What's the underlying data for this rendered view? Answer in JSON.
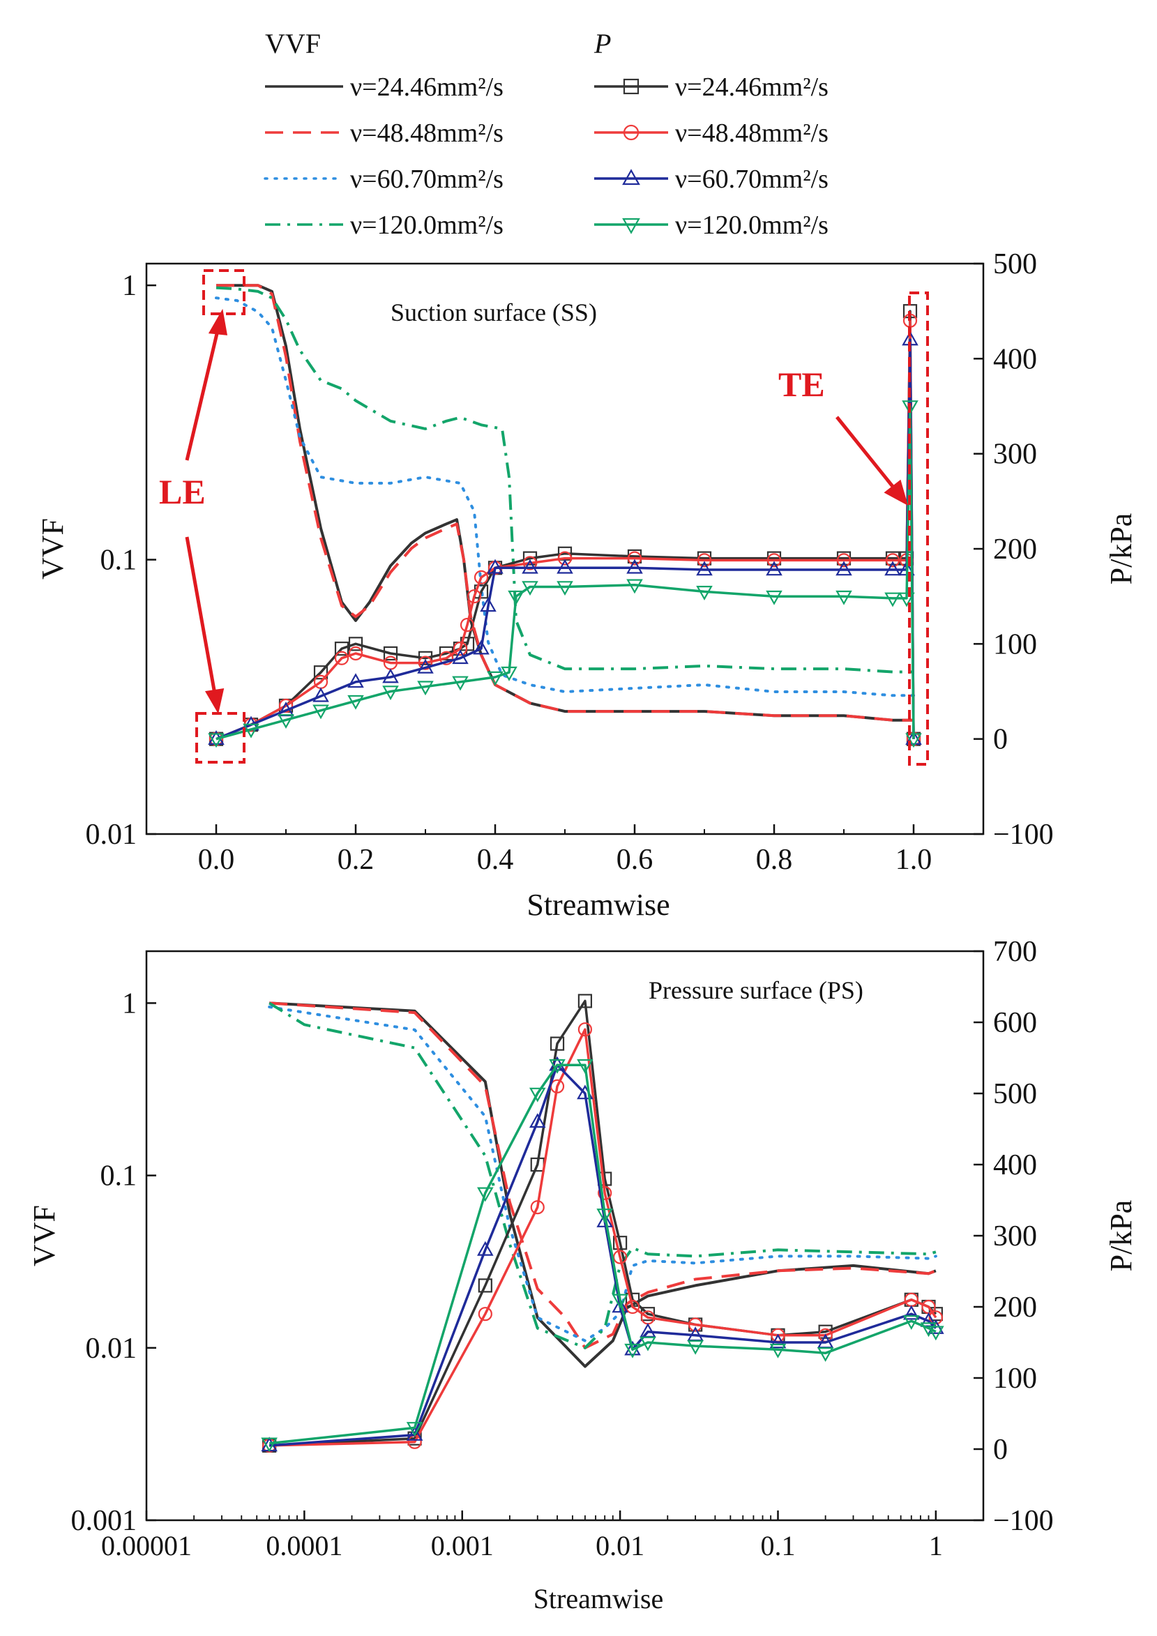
{
  "legend": {
    "vvf_header": "VVF",
    "p_header": "P",
    "items": [
      {
        "label": "ν=24.46mm²/s",
        "color": "#333333",
        "vvf_dash": "",
        "p_marker": "square"
      },
      {
        "label": "ν=48.48mm²/s",
        "color": "#ee3b3b",
        "vvf_dash": "26,14",
        "p_marker": "circle"
      },
      {
        "label": "ν=60.70mm²/s",
        "color": "#2e8ee0",
        "vvf_dash": "3,11",
        "p_marker": "triangle-up"
      },
      {
        "label": "ν=120.0mm²/s",
        "color": "#13a56a",
        "vvf_dash": "22,10,4,10",
        "p_marker": "triangle-down"
      }
    ],
    "p_colors": [
      "#333333",
      "#ee3b3b",
      "#1f2b9a",
      "#13a56a"
    ]
  },
  "chart_data": [
    {
      "type": "line",
      "name": "suction",
      "title": "Suction surface (SS)",
      "xlabel": "Streamwise",
      "ylabel_left": "VVF",
      "ylabel_right": "P/kPa",
      "xscale": "linear",
      "xlim": [
        -0.1,
        1.1
      ],
      "xticks": [
        0.0,
        0.2,
        0.4,
        0.6,
        0.8,
        1.0
      ],
      "xtick_labels": [
        "0.0",
        "0.2",
        "0.4",
        "0.6",
        "0.8",
        "1.0"
      ],
      "y_left_scale": "log",
      "y_left_lim": [
        0.01,
        1.2
      ],
      "y_left_ticks": [
        0.01,
        0.1,
        1
      ],
      "y_left_tick_labels": [
        "0.01",
        "0.1",
        "1"
      ],
      "y_right_lim": [
        -100,
        500
      ],
      "y_right_ticks": [
        -100,
        0,
        100,
        200,
        300,
        400,
        500
      ],
      "y_right_tick_labels": [
        "−100",
        "0",
        "100",
        "200",
        "300",
        "400",
        "500"
      ],
      "vvf_series": [
        {
          "name": "ν=24.46mm²/s",
          "x": [
            0,
            0.03,
            0.06,
            0.08,
            0.1,
            0.12,
            0.15,
            0.18,
            0.2,
            0.22,
            0.25,
            0.28,
            0.3,
            0.33,
            0.345,
            0.355,
            0.365,
            0.38,
            0.4,
            0.45,
            0.5,
            0.6,
            0.7,
            0.8,
            0.9,
            0.97,
            0.99,
            0.995,
            1.0
          ],
          "y": [
            1.0,
            1.0,
            1.0,
            0.95,
            0.6,
            0.3,
            0.13,
            0.07,
            0.06,
            0.07,
            0.095,
            0.115,
            0.125,
            0.135,
            0.14,
            0.1,
            0.06,
            0.045,
            0.035,
            0.03,
            0.028,
            0.028,
            0.028,
            0.027,
            0.027,
            0.026,
            0.026,
            0.026,
            0.026
          ]
        },
        {
          "name": "ν=48.48mm²/s",
          "x": [
            0,
            0.03,
            0.06,
            0.08,
            0.1,
            0.12,
            0.15,
            0.18,
            0.2,
            0.22,
            0.25,
            0.28,
            0.3,
            0.33,
            0.345,
            0.355,
            0.365,
            0.38,
            0.4,
            0.45,
            0.5,
            0.6,
            0.7,
            0.8,
            0.9,
            0.97,
            0.99,
            0.995,
            1.0
          ],
          "y": [
            1.0,
            1.0,
            1.0,
            0.93,
            0.55,
            0.27,
            0.12,
            0.068,
            0.062,
            0.068,
            0.09,
            0.11,
            0.12,
            0.13,
            0.135,
            0.1,
            0.062,
            0.045,
            0.035,
            0.03,
            0.028,
            0.028,
            0.028,
            0.027,
            0.027,
            0.026,
            0.026,
            0.026,
            0.026
          ]
        },
        {
          "name": "ν=60.70mm²/s",
          "x": [
            0,
            0.03,
            0.06,
            0.08,
            0.1,
            0.12,
            0.15,
            0.2,
            0.25,
            0.3,
            0.35,
            0.37,
            0.38,
            0.39,
            0.41,
            0.45,
            0.5,
            0.6,
            0.7,
            0.8,
            0.9,
            0.97,
            0.99,
            0.995,
            1.0
          ],
          "y": [
            0.9,
            0.88,
            0.8,
            0.7,
            0.45,
            0.28,
            0.2,
            0.19,
            0.19,
            0.2,
            0.19,
            0.15,
            0.08,
            0.05,
            0.038,
            0.035,
            0.033,
            0.034,
            0.035,
            0.033,
            0.033,
            0.032,
            0.032,
            0.032,
            0.032
          ]
        },
        {
          "name": "ν=120.0mm²/s",
          "x": [
            0,
            0.03,
            0.06,
            0.08,
            0.1,
            0.12,
            0.15,
            0.18,
            0.2,
            0.25,
            0.3,
            0.33,
            0.35,
            0.38,
            0.41,
            0.42,
            0.43,
            0.45,
            0.5,
            0.6,
            0.7,
            0.8,
            0.9,
            0.97,
            0.99,
            0.995,
            1.0
          ],
          "y": [
            0.98,
            0.97,
            0.95,
            0.9,
            0.75,
            0.58,
            0.45,
            0.42,
            0.38,
            0.32,
            0.3,
            0.32,
            0.33,
            0.31,
            0.3,
            0.2,
            0.06,
            0.045,
            0.04,
            0.04,
            0.041,
            0.04,
            0.04,
            0.039,
            0.039,
            0.039,
            0.039
          ]
        }
      ],
      "p_series": [
        {
          "name": "ν=24.46mm²/s",
          "x": [
            0,
            0.05,
            0.1,
            0.15,
            0.18,
            0.2,
            0.25,
            0.3,
            0.33,
            0.35,
            0.36,
            0.38,
            0.4,
            0.45,
            0.5,
            0.6,
            0.7,
            0.8,
            0.9,
            0.97,
            0.99,
            0.995,
            1.0
          ],
          "y": [
            0,
            15,
            35,
            70,
            95,
            100,
            90,
            85,
            90,
            95,
            100,
            155,
            180,
            190,
            195,
            192,
            190,
            190,
            190,
            190,
            190,
            450,
            0
          ]
        },
        {
          "name": "ν=48.48mm²/s",
          "x": [
            0,
            0.05,
            0.1,
            0.15,
            0.18,
            0.2,
            0.25,
            0.3,
            0.33,
            0.35,
            0.36,
            0.37,
            0.38,
            0.4,
            0.45,
            0.5,
            0.6,
            0.7,
            0.8,
            0.9,
            0.97,
            0.99,
            0.995,
            1.0
          ],
          "y": [
            0,
            15,
            35,
            60,
            85,
            90,
            80,
            80,
            85,
            95,
            120,
            150,
            170,
            180,
            185,
            190,
            190,
            188,
            188,
            188,
            188,
            188,
            440,
            0
          ]
        },
        {
          "name": "ν=60.70mm²/s",
          "x": [
            0,
            0.05,
            0.1,
            0.15,
            0.2,
            0.25,
            0.3,
            0.35,
            0.38,
            0.39,
            0.4,
            0.45,
            0.5,
            0.6,
            0.7,
            0.8,
            0.9,
            0.97,
            0.99,
            0.995,
            1.0
          ],
          "y": [
            0,
            15,
            30,
            45,
            60,
            65,
            75,
            85,
            95,
            140,
            180,
            180,
            180,
            180,
            178,
            178,
            178,
            178,
            178,
            420,
            0
          ]
        },
        {
          "name": "ν=120.0mm²/s",
          "x": [
            0,
            0.05,
            0.1,
            0.15,
            0.2,
            0.25,
            0.3,
            0.35,
            0.4,
            0.42,
            0.43,
            0.45,
            0.5,
            0.6,
            0.7,
            0.8,
            0.9,
            0.97,
            0.99,
            0.995,
            1.0
          ],
          "y": [
            0,
            10,
            20,
            30,
            40,
            50,
            55,
            60,
            65,
            70,
            150,
            160,
            160,
            162,
            155,
            150,
            150,
            148,
            148,
            350,
            0
          ]
        }
      ],
      "annotations": {
        "le": "LE",
        "te": "TE"
      }
    },
    {
      "type": "line",
      "name": "pressure",
      "title": "Pressure surface (PS)",
      "xlabel": "Streamwise",
      "ylabel_left": "VVF",
      "ylabel_right": "P/kPa",
      "xscale": "log",
      "xlim": [
        1e-05,
        2
      ],
      "xticks": [
        1e-05,
        0.0001,
        0.001,
        0.01,
        0.1,
        1
      ],
      "xtick_labels": [
        "0.00001",
        "0.0001",
        "0.001",
        "0.01",
        "0.1",
        "1"
      ],
      "y_left_scale": "log",
      "y_left_lim": [
        0.001,
        2
      ],
      "y_left_ticks": [
        0.001,
        0.01,
        0.1,
        1
      ],
      "y_left_tick_labels": [
        "0.001",
        "0.01",
        "0.1",
        "1"
      ],
      "y_right_lim": [
        -100,
        700
      ],
      "y_right_ticks": [
        -100,
        0,
        100,
        200,
        300,
        400,
        500,
        600,
        700
      ],
      "y_right_tick_labels": [
        "−100",
        "0",
        "100",
        "200",
        "300",
        "400",
        "500",
        "600",
        "700"
      ],
      "vvf_series": [
        {
          "name": "ν=24.46mm²/s",
          "x": [
            6e-05,
            0.0005,
            0.0014,
            0.002,
            0.003,
            0.006,
            0.009,
            0.011,
            0.015,
            0.03,
            0.1,
            0.3,
            0.9,
            1.0
          ],
          "y": [
            1.0,
            0.9,
            0.35,
            0.06,
            0.015,
            0.0078,
            0.011,
            0.017,
            0.02,
            0.023,
            0.028,
            0.03,
            0.027,
            0.028
          ]
        },
        {
          "name": "ν=48.48mm²/s",
          "x": [
            6e-05,
            0.0005,
            0.0014,
            0.002,
            0.003,
            0.0045,
            0.006,
            0.009,
            0.011,
            0.015,
            0.03,
            0.1,
            0.3,
            0.9,
            1.0
          ],
          "y": [
            1.0,
            0.88,
            0.33,
            0.07,
            0.022,
            0.015,
            0.01,
            0.012,
            0.018,
            0.021,
            0.025,
            0.028,
            0.029,
            0.027,
            0.028
          ]
        },
        {
          "name": "ν=60.70mm²/s",
          "x": [
            6e-05,
            0.0005,
            0.0014,
            0.002,
            0.003,
            0.006,
            0.008,
            0.01,
            0.012,
            0.015,
            0.03,
            0.1,
            0.3,
            0.9,
            1.0
          ],
          "y": [
            0.95,
            0.7,
            0.22,
            0.05,
            0.015,
            0.011,
            0.013,
            0.016,
            0.03,
            0.032,
            0.031,
            0.034,
            0.034,
            0.033,
            0.034
          ]
        },
        {
          "name": "ν=120.0mm²/s",
          "x": [
            6e-05,
            0.0001,
            0.0005,
            0.0014,
            0.002,
            0.003,
            0.006,
            0.008,
            0.01,
            0.012,
            0.015,
            0.03,
            0.1,
            0.3,
            0.9,
            1.0
          ],
          "y": [
            1.0,
            0.75,
            0.55,
            0.13,
            0.04,
            0.013,
            0.01,
            0.013,
            0.03,
            0.038,
            0.035,
            0.034,
            0.037,
            0.036,
            0.035,
            0.036
          ]
        }
      ],
      "p_series": [
        {
          "name": "ν=24.46mm²/s",
          "x": [
            6e-05,
            0.0005,
            0.0014,
            0.003,
            0.004,
            0.006,
            0.008,
            0.01,
            0.012,
            0.015,
            0.03,
            0.1,
            0.2,
            0.7,
            0.9,
            1.0
          ],
          "y": [
            5,
            15,
            230,
            400,
            570,
            630,
            380,
            290,
            210,
            190,
            175,
            160,
            165,
            210,
            200,
            190
          ]
        },
        {
          "name": "ν=48.48mm²/s",
          "x": [
            6e-05,
            0.0005,
            0.0014,
            0.003,
            0.004,
            0.006,
            0.008,
            0.01,
            0.012,
            0.015,
            0.03,
            0.1,
            0.2,
            0.7,
            0.9,
            1.0
          ],
          "y": [
            5,
            10,
            190,
            340,
            510,
            590,
            360,
            270,
            200,
            185,
            175,
            160,
            160,
            210,
            200,
            185
          ]
        },
        {
          "name": "ν=60.70mm²/s",
          "x": [
            6e-05,
            0.0005,
            0.0014,
            0.003,
            0.004,
            0.006,
            0.008,
            0.01,
            0.012,
            0.015,
            0.03,
            0.1,
            0.2,
            0.7,
            0.9,
            1.0
          ],
          "y": [
            5,
            20,
            280,
            460,
            540,
            500,
            320,
            200,
            140,
            165,
            160,
            150,
            150,
            190,
            180,
            170
          ]
        },
        {
          "name": "ν=120.0mm²/s",
          "x": [
            6e-05,
            0.0005,
            0.0014,
            0.003,
            0.004,
            0.006,
            0.008,
            0.01,
            0.012,
            0.015,
            0.03,
            0.1,
            0.2,
            0.7,
            0.9,
            1.0
          ],
          "y": [
            8,
            30,
            360,
            500,
            540,
            540,
            330,
            210,
            140,
            150,
            145,
            140,
            135,
            180,
            170,
            165
          ]
        }
      ]
    }
  ]
}
